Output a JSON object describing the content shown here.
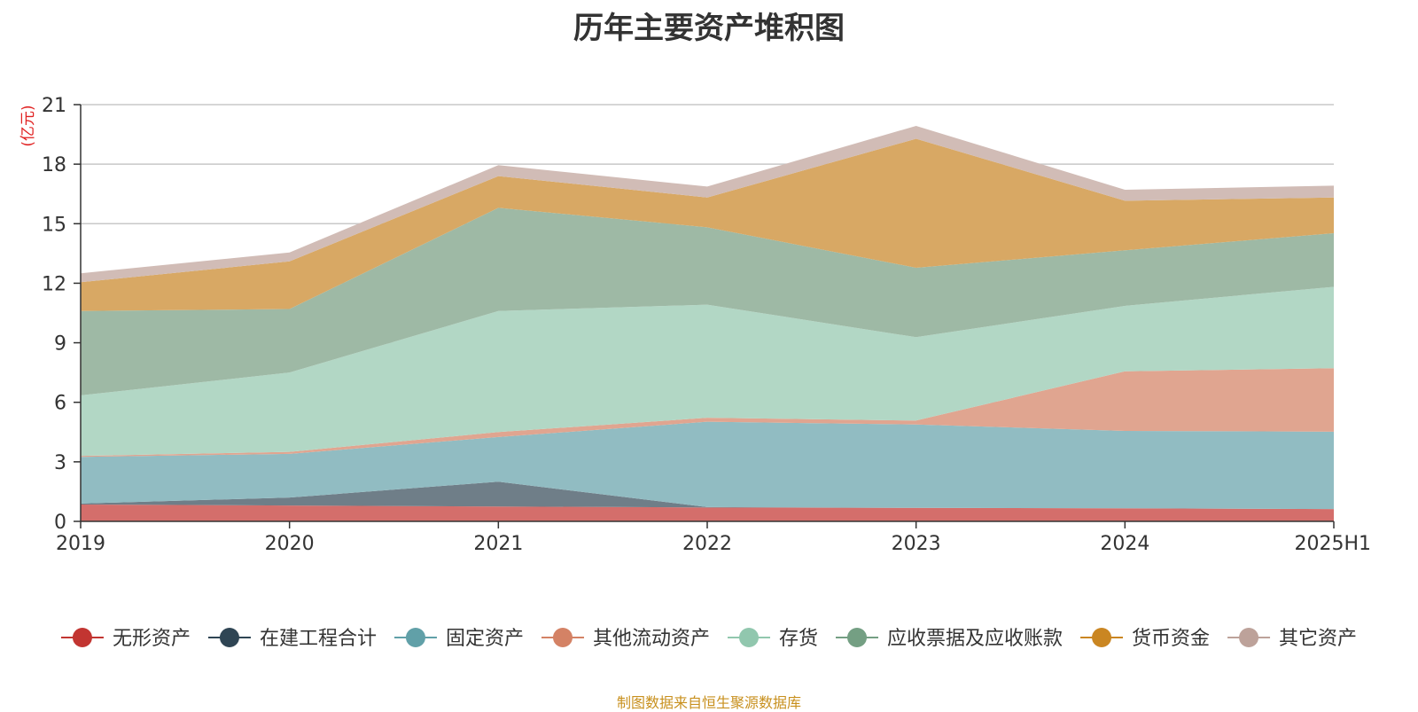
{
  "source_note": "制图数据来自恒生聚源数据库",
  "colors": {
    "source_note": "#c8901e",
    "unit": "#e02020",
    "grid": "#c8c8c8",
    "axis": "#333333"
  },
  "chart_data": {
    "type": "area",
    "stacked": true,
    "title": "历年主要资产堆积图",
    "ylabel": "(亿元)",
    "xlabel": "",
    "categories": [
      "2019",
      "2020",
      "2021",
      "2022",
      "2023",
      "2024",
      "2025H1"
    ],
    "ylim": [
      0,
      21
    ],
    "yticks": [
      0,
      3,
      6,
      9,
      12,
      15,
      18,
      21
    ],
    "grid": true,
    "legend_position": "bottom",
    "series": [
      {
        "name": "无形资产",
        "color": "#c23531",
        "fill": "#d46e6b",
        "values": [
          0.85,
          0.8,
          0.75,
          0.7,
          0.68,
          0.66,
          0.62
        ]
      },
      {
        "name": "在建工程合计",
        "color": "#2f4554",
        "fill": "#6f7e88",
        "values": [
          0.05,
          0.4,
          1.25,
          0.02,
          0.0,
          0.0,
          0.0
        ]
      },
      {
        "name": "固定资产",
        "color": "#61a0a8",
        "fill": "#91bcc2",
        "values": [
          2.35,
          2.2,
          2.25,
          4.3,
          4.2,
          3.9,
          3.9
        ]
      },
      {
        "name": "其他流动资产",
        "color": "#d48265",
        "fill": "#e0a590",
        "values": [
          0.05,
          0.1,
          0.25,
          0.2,
          0.2,
          3.0,
          3.2
        ]
      },
      {
        "name": "存货",
        "color": "#91c7ae",
        "fill": "#b2d7c5",
        "values": [
          3.05,
          4.0,
          6.1,
          5.7,
          4.2,
          3.3,
          4.1
        ]
      },
      {
        "name": "应收票据及应收账款",
        "color": "#749f83",
        "fill": "#9eb9a5",
        "values": [
          4.25,
          3.2,
          5.2,
          3.9,
          3.5,
          2.8,
          2.7
        ]
      },
      {
        "name": "货币资金",
        "color": "#ca8622",
        "fill": "#d8a864",
        "values": [
          1.45,
          2.4,
          1.6,
          1.5,
          6.5,
          2.5,
          1.8
        ]
      },
      {
        "name": "其它资产",
        "color": "#bda29a",
        "fill": "#d1bcb6",
        "values": [
          0.45,
          0.45,
          0.55,
          0.55,
          0.65,
          0.55,
          0.6
        ]
      }
    ]
  }
}
